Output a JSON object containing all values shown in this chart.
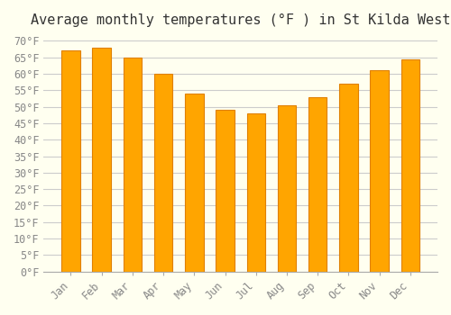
{
  "title": "Average monthly temperatures (°F ) in St Kilda West",
  "months": [
    "Jan",
    "Feb",
    "Mar",
    "Apr",
    "May",
    "Jun",
    "Jul",
    "Aug",
    "Sep",
    "Oct",
    "Nov",
    "Dec"
  ],
  "values": [
    67,
    68,
    65,
    60,
    54,
    49,
    48,
    50.5,
    53,
    57,
    61,
    64.5
  ],
  "bar_color": "#FFA500",
  "bar_edge_color": "#E08000",
  "background_color": "#FFFFF0",
  "grid_color": "#cccccc",
  "ylim": [
    0,
    72
  ],
  "yticks": [
    0,
    5,
    10,
    15,
    20,
    25,
    30,
    35,
    40,
    45,
    50,
    55,
    60,
    65,
    70
  ],
  "title_fontsize": 11,
  "tick_fontsize": 8.5,
  "tick_font_color": "#888888"
}
